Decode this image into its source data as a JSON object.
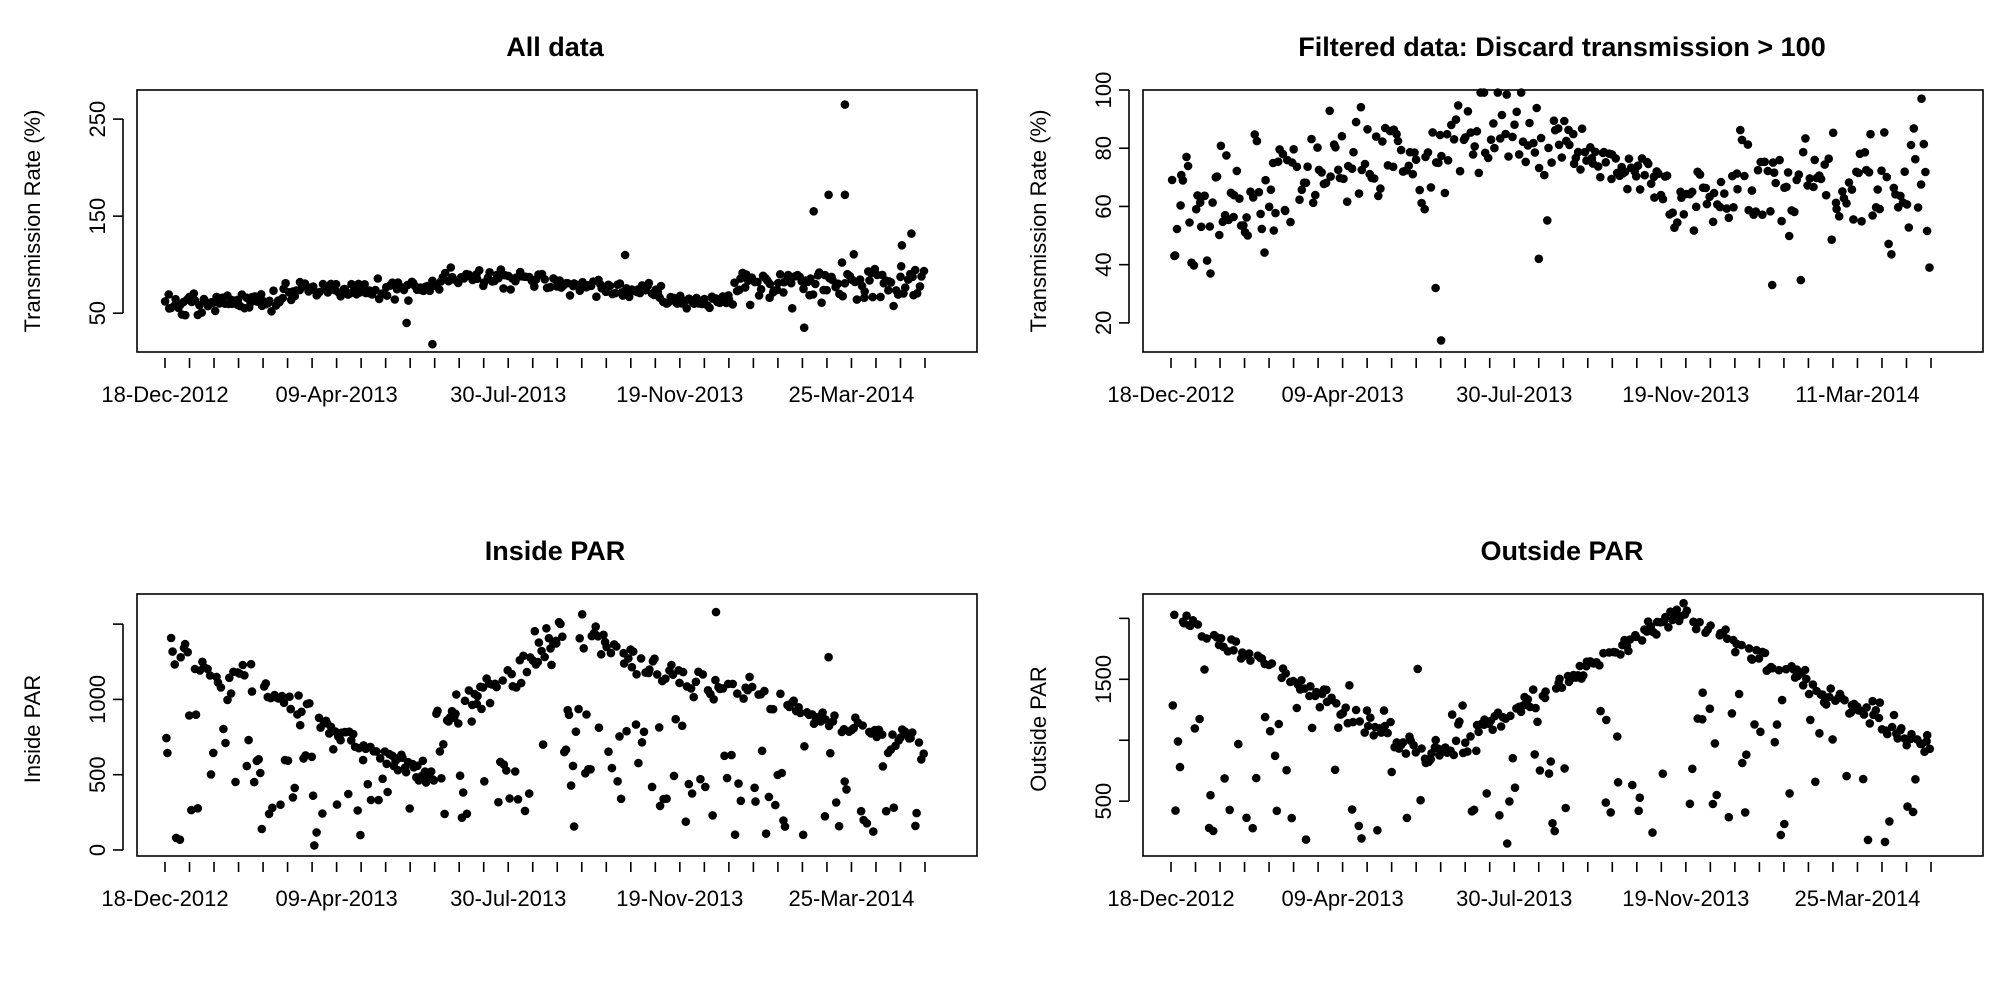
{
  "chart_data": [
    {
      "id": "p1",
      "type": "scatter",
      "title": "All data",
      "ylabel": "Transmission Rate (%)",
      "xlabel": "",
      "x_range": [
        "2012-12-18",
        "2014-07-01"
      ],
      "x_tick_labels": [
        "18-Dec-2012",
        "09-Apr-2013",
        "30-Jul-2013",
        "19-Nov-2013",
        "25-Mar-2014"
      ],
      "x_minor_ticks": 32,
      "ylim": [
        10,
        280
      ],
      "y_ticks": [
        50,
        150,
        250
      ],
      "y_tick_labels": [
        "50",
        "150",
        "250"
      ],
      "grid": false,
      "series": [
        {
          "segments": [
            {
              "from": "2012-12-18",
              "to": "2013-03-15",
              "center": 58,
              "amp": 0,
              "trend": 5,
              "spread": 12,
              "n": 60,
              "outliers": []
            },
            {
              "from": "2013-03-15",
              "to": "2013-07-10",
              "center": 75,
              "amp": 0,
              "trend": 0,
              "spread": 10,
              "n": 75,
              "outliers": [
                [
                  "2013-06-14",
                  40
                ],
                [
                  "2013-07-03",
                  18
                ]
              ]
            },
            {
              "from": "2013-07-10",
              "to": "2013-09-25",
              "center": 86,
              "amp": 0,
              "trend": 0,
              "spread": 8,
              "n": 45,
              "outliers": []
            },
            {
              "from": "2013-09-25",
              "to": "2013-12-20",
              "center": 80,
              "amp": 0,
              "trend": -8,
              "spread": 8,
              "n": 55,
              "outliers": [
                [
                  "2013-11-22",
                  110
                ]
              ]
            },
            {
              "from": "2013-12-20",
              "to": "2014-02-10",
              "center": 62,
              "amp": 0,
              "trend": 0,
              "spread": 8,
              "n": 30,
              "outliers": []
            },
            {
              "from": "2014-02-10",
              "to": "2014-07-01",
              "center": 80,
              "amp": 0,
              "trend": 0,
              "spread": 22,
              "n": 95,
              "outliers": [
                [
                  "2014-05-03",
                  265
                ],
                [
                  "2014-04-21",
                  172
                ],
                [
                  "2014-05-03",
                  172
                ],
                [
                  "2014-04-10",
                  155
                ],
                [
                  "2014-06-21",
                  132
                ],
                [
                  "2014-06-14",
                  120
                ],
                [
                  "2014-04-03",
                  35
                ]
              ]
            }
          ]
        }
      ]
    },
    {
      "id": "p2",
      "type": "scatter",
      "title": "Filtered data: Discard transmission > 100",
      "ylabel": "Transmission Rate (%)",
      "xlabel": "",
      "x_range": [
        "2012-12-18",
        "2014-07-01"
      ],
      "x_tick_labels": [
        "18-Dec-2012",
        "09-Apr-2013",
        "30-Jul-2013",
        "19-Nov-2013",
        "11-Mar-2014"
      ],
      "x_minor_ticks": 32,
      "ylim": [
        10,
        100
      ],
      "y_ticks": [
        20,
        40,
        60,
        80,
        100
      ],
      "y_tick_labels": [
        "20",
        "40",
        "60",
        "80",
        "100"
      ],
      "grid": false,
      "series": [
        {
          "segments": [
            {
              "from": "2012-12-18",
              "to": "2013-03-15",
              "center": 58,
              "amp": 0,
              "trend": 8,
              "spread": 22,
              "n": 60,
              "outliers": []
            },
            {
              "from": "2013-03-15",
              "to": "2013-07-10",
              "center": 74,
              "amp": 0,
              "trend": 4,
              "spread": 16,
              "n": 70,
              "outliers": [
                [
                  "2013-07-05",
                  14
                ],
                [
                  "2013-07-01",
                  32
                ]
              ]
            },
            {
              "from": "2013-07-10",
              "to": "2013-09-25",
              "center": 84,
              "amp": 0,
              "trend": 0,
              "spread": 16,
              "n": 45,
              "outliers": [
                [
                  "2013-09-15",
                  42
                ]
              ]
            },
            {
              "from": "2013-09-25",
              "to": "2013-12-20",
              "center": 80,
              "amp": 0,
              "trend": -10,
              "spread": 10,
              "n": 55,
              "outliers": []
            },
            {
              "from": "2013-12-20",
              "to": "2014-02-10",
              "center": 58,
              "amp": 0,
              "trend": 8,
              "spread": 12,
              "n": 30,
              "outliers": []
            },
            {
              "from": "2014-02-10",
              "to": "2014-07-01",
              "center": 70,
              "amp": 0,
              "trend": -6,
              "spread": 22,
              "n": 85,
              "outliers": [
                [
                  "2014-03-06",
                  33
                ],
                [
                  "2014-06-24",
                  97
                ]
              ]
            }
          ]
        }
      ]
    },
    {
      "id": "p3",
      "type": "scatter",
      "title": "Inside PAR",
      "ylabel": "Inside PAR",
      "xlabel": "",
      "x_range": [
        "2012-12-18",
        "2014-07-01"
      ],
      "x_tick_labels": [
        "18-Dec-2012",
        "09-Apr-2013",
        "30-Jul-2013",
        "19-Nov-2013",
        "25-Mar-2014"
      ],
      "x_minor_ticks": 32,
      "ylim": [
        -40,
        1700
      ],
      "y_ticks": [
        0,
        500,
        1000,
        1500
      ],
      "y_tick_labels": [
        "0",
        "500",
        "1000",
        ""
      ],
      "grid": false,
      "series": [
        {
          "segments": [
            {
              "from": "2012-12-18",
              "to": "2013-02-20",
              "center": 1300,
              "amp": 0,
              "trend": -200,
              "spread": 150,
              "n": 40,
              "low_fraction": 0.45,
              "low_range": [
                50,
                900
              ],
              "outliers": []
            },
            {
              "from": "2013-02-20",
              "to": "2013-07-05",
              "center": 1100,
              "amp": 0,
              "trend": -650,
              "spread": 80,
              "n": 100,
              "low_fraction": 0.4,
              "low_range": [
                30,
                700
              ],
              "outliers": []
            },
            {
              "from": "2013-07-05",
              "to": "2013-10-10",
              "center": 800,
              "amp": 0,
              "trend": 650,
              "spread": 120,
              "n": 75,
              "low_fraction": 0.3,
              "low_range": [
                150,
                700
              ],
              "outliers": []
            },
            {
              "from": "2013-10-10",
              "to": "2014-01-10",
              "center": 1500,
              "amp": 0,
              "trend": -400,
              "spread": 120,
              "n": 70,
              "low_fraction": 0.4,
              "low_range": [
                150,
                1000
              ],
              "outliers": []
            },
            {
              "from": "2014-01-10",
              "to": "2014-07-01",
              "center": 1150,
              "amp": 0,
              "trend": -450,
              "spread": 110,
              "n": 110,
              "low_fraction": 0.35,
              "low_range": [
                100,
                700
              ],
              "outliers": [
                [
                  "2014-01-28",
                  1580
                ],
                [
                  "2014-04-21",
                  1280
                ]
              ]
            }
          ]
        }
      ]
    },
    {
      "id": "p4",
      "type": "scatter",
      "title": "Outside PAR",
      "ylabel": "Outside PAR",
      "xlabel": "",
      "x_range": [
        "2012-12-18",
        "2014-07-01"
      ],
      "x_tick_labels": [
        "18-Dec-2012",
        "09-Apr-2013",
        "30-Jul-2013",
        "19-Nov-2013",
        "25-Mar-2014"
      ],
      "x_minor_ticks": 32,
      "ylim": [
        50,
        2200
      ],
      "y_ticks": [
        500,
        1000,
        1500,
        2000
      ],
      "y_tick_labels": [
        "500",
        "",
        "1500",
        ""
      ],
      "grid": false,
      "series": [
        {
          "segments": [
            {
              "from": "2012-12-18",
              "to": "2013-06-25",
              "center": 2050,
              "amp": 0,
              "trend": -1200,
              "spread": 90,
              "n": 120,
              "low_fraction": 0.35,
              "low_range": [
                150,
                1600
              ],
              "outliers": []
            },
            {
              "from": "2013-06-25",
              "to": "2013-12-30",
              "center": 850,
              "amp": 0,
              "trend": 1200,
              "spread": 80,
              "n": 130,
              "low_fraction": 0.3,
              "low_range": [
                150,
                1300
              ],
              "outliers": []
            },
            {
              "from": "2013-12-30",
              "to": "2014-07-01",
              "center": 2050,
              "amp": 0,
              "trend": -1150,
              "spread": 80,
              "n": 125,
              "low_fraction": 0.35,
              "low_range": [
                150,
                1400
              ],
              "outliers": []
            }
          ]
        }
      ]
    }
  ]
}
